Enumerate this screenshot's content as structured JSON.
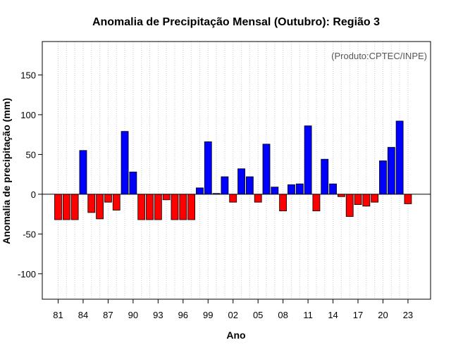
{
  "chart_data": {
    "type": "bar",
    "title": "Anomalia de Precipitação Mensal (Outubro): Região 3",
    "xlabel": "Ano",
    "ylabel": "Anomalia de precipitação (mm)",
    "annotation": "(Produto:CPTEC/INPE)",
    "ylim": [
      -132,
      192
    ],
    "yticks": [
      -100,
      -50,
      0,
      50,
      100,
      150
    ],
    "xtick_labels": [
      "81",
      "84",
      "87",
      "90",
      "93",
      "96",
      "99",
      "02",
      "05",
      "08",
      "11",
      "14",
      "17",
      "20",
      "23"
    ],
    "categories": [
      "1981",
      "1982",
      "1983",
      "1984",
      "1985",
      "1986",
      "1987",
      "1988",
      "1989",
      "1990",
      "1991",
      "1992",
      "1993",
      "1994",
      "1995",
      "1996",
      "1997",
      "1998",
      "1999",
      "2000",
      "2001",
      "2002",
      "2003",
      "2004",
      "2005",
      "2006",
      "2007",
      "2008",
      "2009",
      "2010",
      "2011",
      "2012",
      "2013",
      "2014",
      "2015",
      "2016",
      "2017",
      "2018",
      "2019",
      "2020",
      "2021",
      "2022",
      "2023"
    ],
    "values": [
      -32,
      -32,
      -32,
      55,
      -23,
      -31,
      -10,
      -20,
      79,
      28,
      -32,
      -32,
      -32,
      -7,
      -32,
      -32,
      -32,
      8,
      66,
      1,
      22,
      -10,
      32,
      22,
      -10,
      63,
      9,
      -21,
      12,
      13,
      86,
      -21,
      44,
      13,
      -3,
      -28,
      -13,
      -15,
      -10,
      42,
      59,
      92,
      -12
    ],
    "grid": "vertical dotted",
    "colors": {
      "positive": "#0000ff",
      "negative": "#ff0000",
      "grid": "#cccccc",
      "zero_line": "#000000"
    }
  }
}
